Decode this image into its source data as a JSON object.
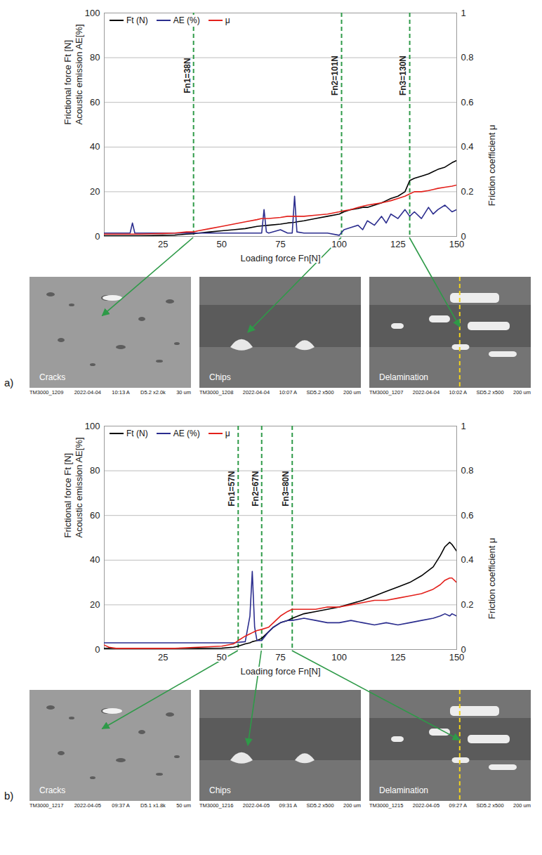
{
  "chart_data": [
    {
      "type": "line",
      "panel_label": "a)",
      "xlabel": "Loading force Fn[N]",
      "ylabel": [
        "Frictional force Ft [N]",
        "Acoustic emission AE[%]"
      ],
      "y2label": "Friction coefficient μ",
      "xlim": [
        0,
        150
      ],
      "xticks": [
        25,
        50,
        75,
        100,
        125,
        150
      ],
      "ylim": [
        0,
        100
      ],
      "yticks": [
        0,
        20,
        40,
        60,
        80,
        100
      ],
      "y2lim": [
        0,
        1
      ],
      "y2ticks": [
        0,
        0.2,
        0.4,
        0.6,
        0.8,
        1
      ],
      "grid": true,
      "legend": "top-left",
      "x": [
        0,
        5,
        10,
        11,
        12,
        13,
        15,
        20,
        25,
        30,
        35,
        38,
        40,
        45,
        50,
        55,
        60,
        65,
        67,
        68,
        69,
        70,
        75,
        78,
        80,
        81,
        82,
        85,
        90,
        95,
        100,
        102,
        105,
        108,
        110,
        112,
        115,
        118,
        120,
        122,
        125,
        128,
        130,
        132,
        135,
        138,
        140,
        142,
        145,
        148,
        150
      ],
      "series": [
        {
          "name": "Ft (N)",
          "color": "#000000",
          "values": [
            0.3,
            0.3,
            0.3,
            0.3,
            0.3,
            0.3,
            0.3,
            0.4,
            0.5,
            0.6,
            1,
            1.2,
            1.5,
            2,
            2.5,
            3,
            3.5,
            4.5,
            4.7,
            4.8,
            4.9,
            5,
            5.5,
            6,
            6.2,
            6.3,
            6.5,
            7,
            8,
            9,
            10,
            11,
            12,
            12.5,
            13,
            13,
            14,
            15,
            16,
            17,
            18,
            20,
            25,
            26,
            27,
            28,
            29,
            30,
            31,
            33,
            34
          ]
        },
        {
          "name": "AE (%)",
          "color": "#2b2d8e",
          "values": [
            1.5,
            1.5,
            1.5,
            1.5,
            6,
            1.5,
            1.5,
            1.5,
            1.5,
            1.5,
            1.5,
            1.5,
            1.5,
            1.5,
            1.5,
            1.5,
            1.5,
            1.5,
            1.5,
            12,
            2,
            1.5,
            3,
            1.5,
            1.5,
            18,
            2,
            1.5,
            1.5,
            1.5,
            0.5,
            3,
            4,
            5,
            3,
            7,
            5,
            9,
            6,
            10,
            8,
            12,
            9,
            11,
            8,
            13,
            10,
            12,
            14,
            11,
            12
          ]
        },
        {
          "name": "μ",
          "color": "#e3201b",
          "axis": "y2",
          "values": [
            0.01,
            0.01,
            0.01,
            0.01,
            0.01,
            0.01,
            0.01,
            0.012,
            0.013,
            0.015,
            0.02,
            0.02,
            0.025,
            0.035,
            0.045,
            0.055,
            0.065,
            0.075,
            0.08,
            0.08,
            0.08,
            0.08,
            0.085,
            0.09,
            0.09,
            0.09,
            0.09,
            0.09,
            0.095,
            0.1,
            0.11,
            0.115,
            0.12,
            0.13,
            0.135,
            0.14,
            0.145,
            0.15,
            0.155,
            0.16,
            0.17,
            0.18,
            0.19,
            0.2,
            0.2,
            0.205,
            0.21,
            0.215,
            0.22,
            0.225,
            0.23
          ]
        }
      ],
      "annotations": [
        {
          "x": 38,
          "label": "Fn1=38N"
        },
        {
          "x": 101,
          "label": "Fn2=101N"
        },
        {
          "x": 130,
          "label": "Fn3=130N"
        }
      ],
      "micrographs": [
        {
          "label": "Cracks",
          "caption": [
            "TM3000_1209",
            "2022-04-04",
            "10:13 A",
            "D5.2 x2.0k",
            "30 um"
          ]
        },
        {
          "label": "Chips",
          "caption": [
            "TM3000_1208",
            "2022-04-04",
            "10:07 A",
            "SD5.2 x500",
            "200 um"
          ]
        },
        {
          "label": "Delamination",
          "caption": [
            "TM3000_1207",
            "2022-04-04",
            "10:02 A",
            "SD5.2 x500",
            "200 um"
          ]
        }
      ]
    },
    {
      "type": "line",
      "panel_label": "b)",
      "xlabel": "Loading force Fn[N]",
      "ylabel": [
        "Frictional force Ft [N]",
        "Acoustic emission AE[%]"
      ],
      "y2label": "Friction coefficient μ",
      "xlim": [
        0,
        150
      ],
      "xticks": [
        25,
        50,
        75,
        100,
        125,
        150
      ],
      "ylim": [
        0,
        100
      ],
      "yticks": [
        0,
        20,
        40,
        60,
        80,
        100
      ],
      "y2lim": [
        0,
        1
      ],
      "y2ticks": [
        0,
        0.2,
        0.4,
        0.6,
        0.8,
        1
      ],
      "grid": true,
      "legend": "top-left",
      "x": [
        0,
        2,
        5,
        10,
        20,
        30,
        40,
        50,
        55,
        57,
        60,
        62,
        63,
        64,
        65,
        67,
        70,
        72,
        75,
        78,
        80,
        85,
        90,
        95,
        100,
        105,
        110,
        115,
        120,
        125,
        130,
        135,
        140,
        143,
        145,
        147,
        148,
        150
      ],
      "series": [
        {
          "name": "Ft (N)",
          "color": "#000000",
          "values": [
            0.5,
            0.5,
            0.5,
            0.5,
            0.5,
            0.5,
            0.5,
            0.6,
            1,
            1.5,
            2.5,
            3,
            3.5,
            3.8,
            4,
            5,
            8,
            10,
            12,
            13,
            14,
            16,
            17,
            18,
            19,
            20.5,
            22,
            24,
            26,
            28,
            30,
            33,
            37,
            42,
            46,
            48,
            47,
            44
          ]
        },
        {
          "name": "AE (%)",
          "color": "#2b2d8e",
          "values": [
            3,
            3,
            3,
            3,
            3,
            3,
            3,
            3,
            3,
            3.2,
            3.5,
            15,
            35,
            10,
            4,
            4,
            8,
            10,
            12,
            13,
            13,
            14,
            13,
            12,
            12,
            13,
            12,
            11,
            12,
            11,
            12,
            13,
            14,
            15,
            16,
            15,
            16,
            15
          ]
        },
        {
          "name": "μ",
          "color": "#e3201b",
          "axis": "y2",
          "values": [
            0.02,
            0.01,
            0.005,
            0.005,
            0.005,
            0.005,
            0.01,
            0.015,
            0.025,
            0.04,
            0.06,
            0.07,
            0.075,
            0.08,
            0.085,
            0.09,
            0.1,
            0.12,
            0.15,
            0.17,
            0.18,
            0.18,
            0.18,
            0.19,
            0.19,
            0.2,
            0.21,
            0.22,
            0.22,
            0.23,
            0.24,
            0.25,
            0.27,
            0.29,
            0.31,
            0.32,
            0.32,
            0.3
          ]
        }
      ],
      "annotations": [
        {
          "x": 57,
          "label": "Fn1=57N"
        },
        {
          "x": 67,
          "label": "Fn2=67N"
        },
        {
          "x": 80,
          "label": "Fn3=80N"
        }
      ],
      "micrographs": [
        {
          "label": "Cracks",
          "caption": [
            "TM3000_1217",
            "2022-04-05",
            "09:37 A",
            "D5.1 x1.8k",
            "50 um"
          ]
        },
        {
          "label": "Chips",
          "caption": [
            "TM3000_1216",
            "2022-04-05",
            "09:31 A",
            "SD5.2 x500",
            "200 um"
          ]
        },
        {
          "label": "Delamination",
          "caption": [
            "TM3000_1215",
            "2022-04-05",
            "09:27 A",
            "SD5.2 x500",
            "200 um"
          ]
        }
      ]
    }
  ]
}
